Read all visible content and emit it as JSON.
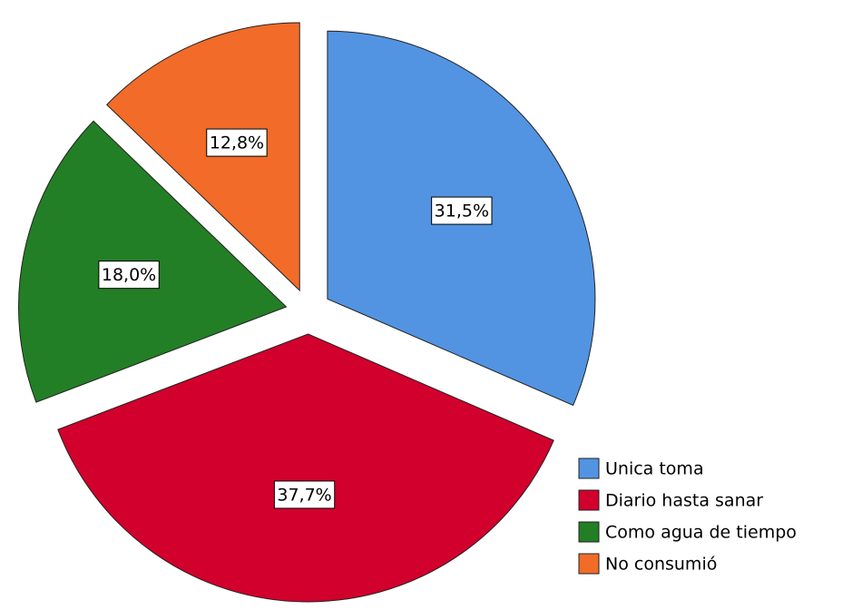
{
  "chart_data": {
    "type": "pie",
    "categories": [
      "Unica toma",
      "Diario hasta sanar",
      "Como agua de tiempo",
      "No consumió"
    ],
    "values": [
      31.5,
      37.7,
      18.0,
      12.8
    ],
    "value_labels": [
      "31,5%",
      "37,7%",
      "18,0%",
      "12,8%"
    ],
    "colors": [
      "#5294e2",
      "#d2002c",
      "#237f25",
      "#f26b29"
    ],
    "legend": "bottom-right",
    "exploded": true
  }
}
